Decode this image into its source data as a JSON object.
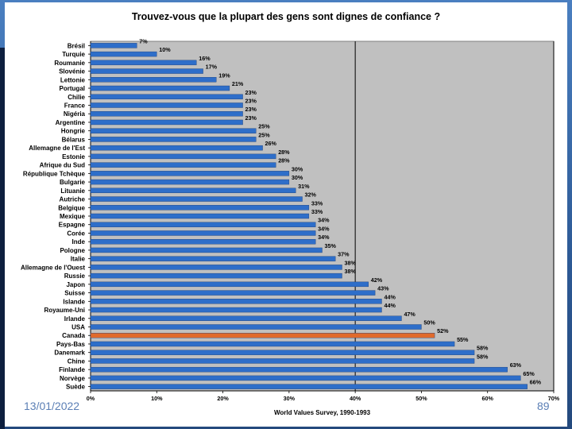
{
  "slide": {
    "date": "13/01/2022",
    "page_number": "89"
  },
  "chart_data": {
    "type": "bar",
    "orientation": "horizontal",
    "title": "Trouvez-vous que la plupart des gens sont dignes de confiance ?",
    "xlabel": "World Values Survey, 1990-1993",
    "ylabel": "",
    "xlim": [
      0,
      70
    ],
    "xticks": [
      "0%",
      "10%",
      "20%",
      "30%",
      "40%",
      "50%",
      "60%",
      "70%"
    ],
    "categories": [
      "Brésil",
      "Turquie",
      "Roumanie",
      "Slovénie",
      "Lettonie",
      "Portugal",
      "Chilie",
      "France",
      "Nigéria",
      "Argentine",
      "Hongrie",
      "Bélarus",
      "Allemagne de l'Est",
      "Estonie",
      "Afrique du Sud",
      "République Tchèque",
      "Bulgarie",
      "Lituanie",
      "Autriche",
      "Belgique",
      "Mexique",
      "Espagne",
      "Corée",
      "Inde",
      "Pologne",
      "Italie",
      "Allemagne de l'Ouest",
      "Russie",
      "Japon",
      "Suisse",
      "Islande",
      "Royaume-Uni",
      "Irlande",
      "USA",
      "Canada",
      "Pays-Bas",
      "Danemark",
      "Chine",
      "Finlande",
      "Norvège",
      "Suède"
    ],
    "values": [
      7,
      10,
      16,
      17,
      19,
      21,
      23,
      23,
      23,
      23,
      25,
      25,
      26,
      28,
      28,
      30,
      30,
      31,
      32,
      33,
      33,
      34,
      34,
      34,
      35,
      37,
      38,
      38,
      42,
      43,
      44,
      44,
      47,
      50,
      52,
      55,
      58,
      58,
      63,
      65,
      66
    ],
    "data_labels": [
      "7%",
      "10%",
      "16%",
      "17%",
      "19%",
      "21%",
      "23%",
      "23%",
      "23%",
      "23%",
      "25%",
      "25%",
      "26%",
      "28%",
      "28%",
      "30%",
      "30%",
      "31%",
      "32%",
      "33%",
      "33%",
      "34%",
      "34%",
      "34%",
      "35%",
      "37%",
      "38%",
      "38%",
      "42%",
      "43%",
      "44%",
      "44%",
      "47%",
      "50%",
      "52%",
      "55%",
      "58%",
      "58%",
      "63%",
      "65%",
      "66%"
    ],
    "highlight_category": "Canada",
    "colors": {
      "bar": "#2e6ec9",
      "highlight": "#e06a2c",
      "plot_bg": "#c0c0c0"
    },
    "grid": "vertical lines at 40% and 70%",
    "legend": "none"
  }
}
